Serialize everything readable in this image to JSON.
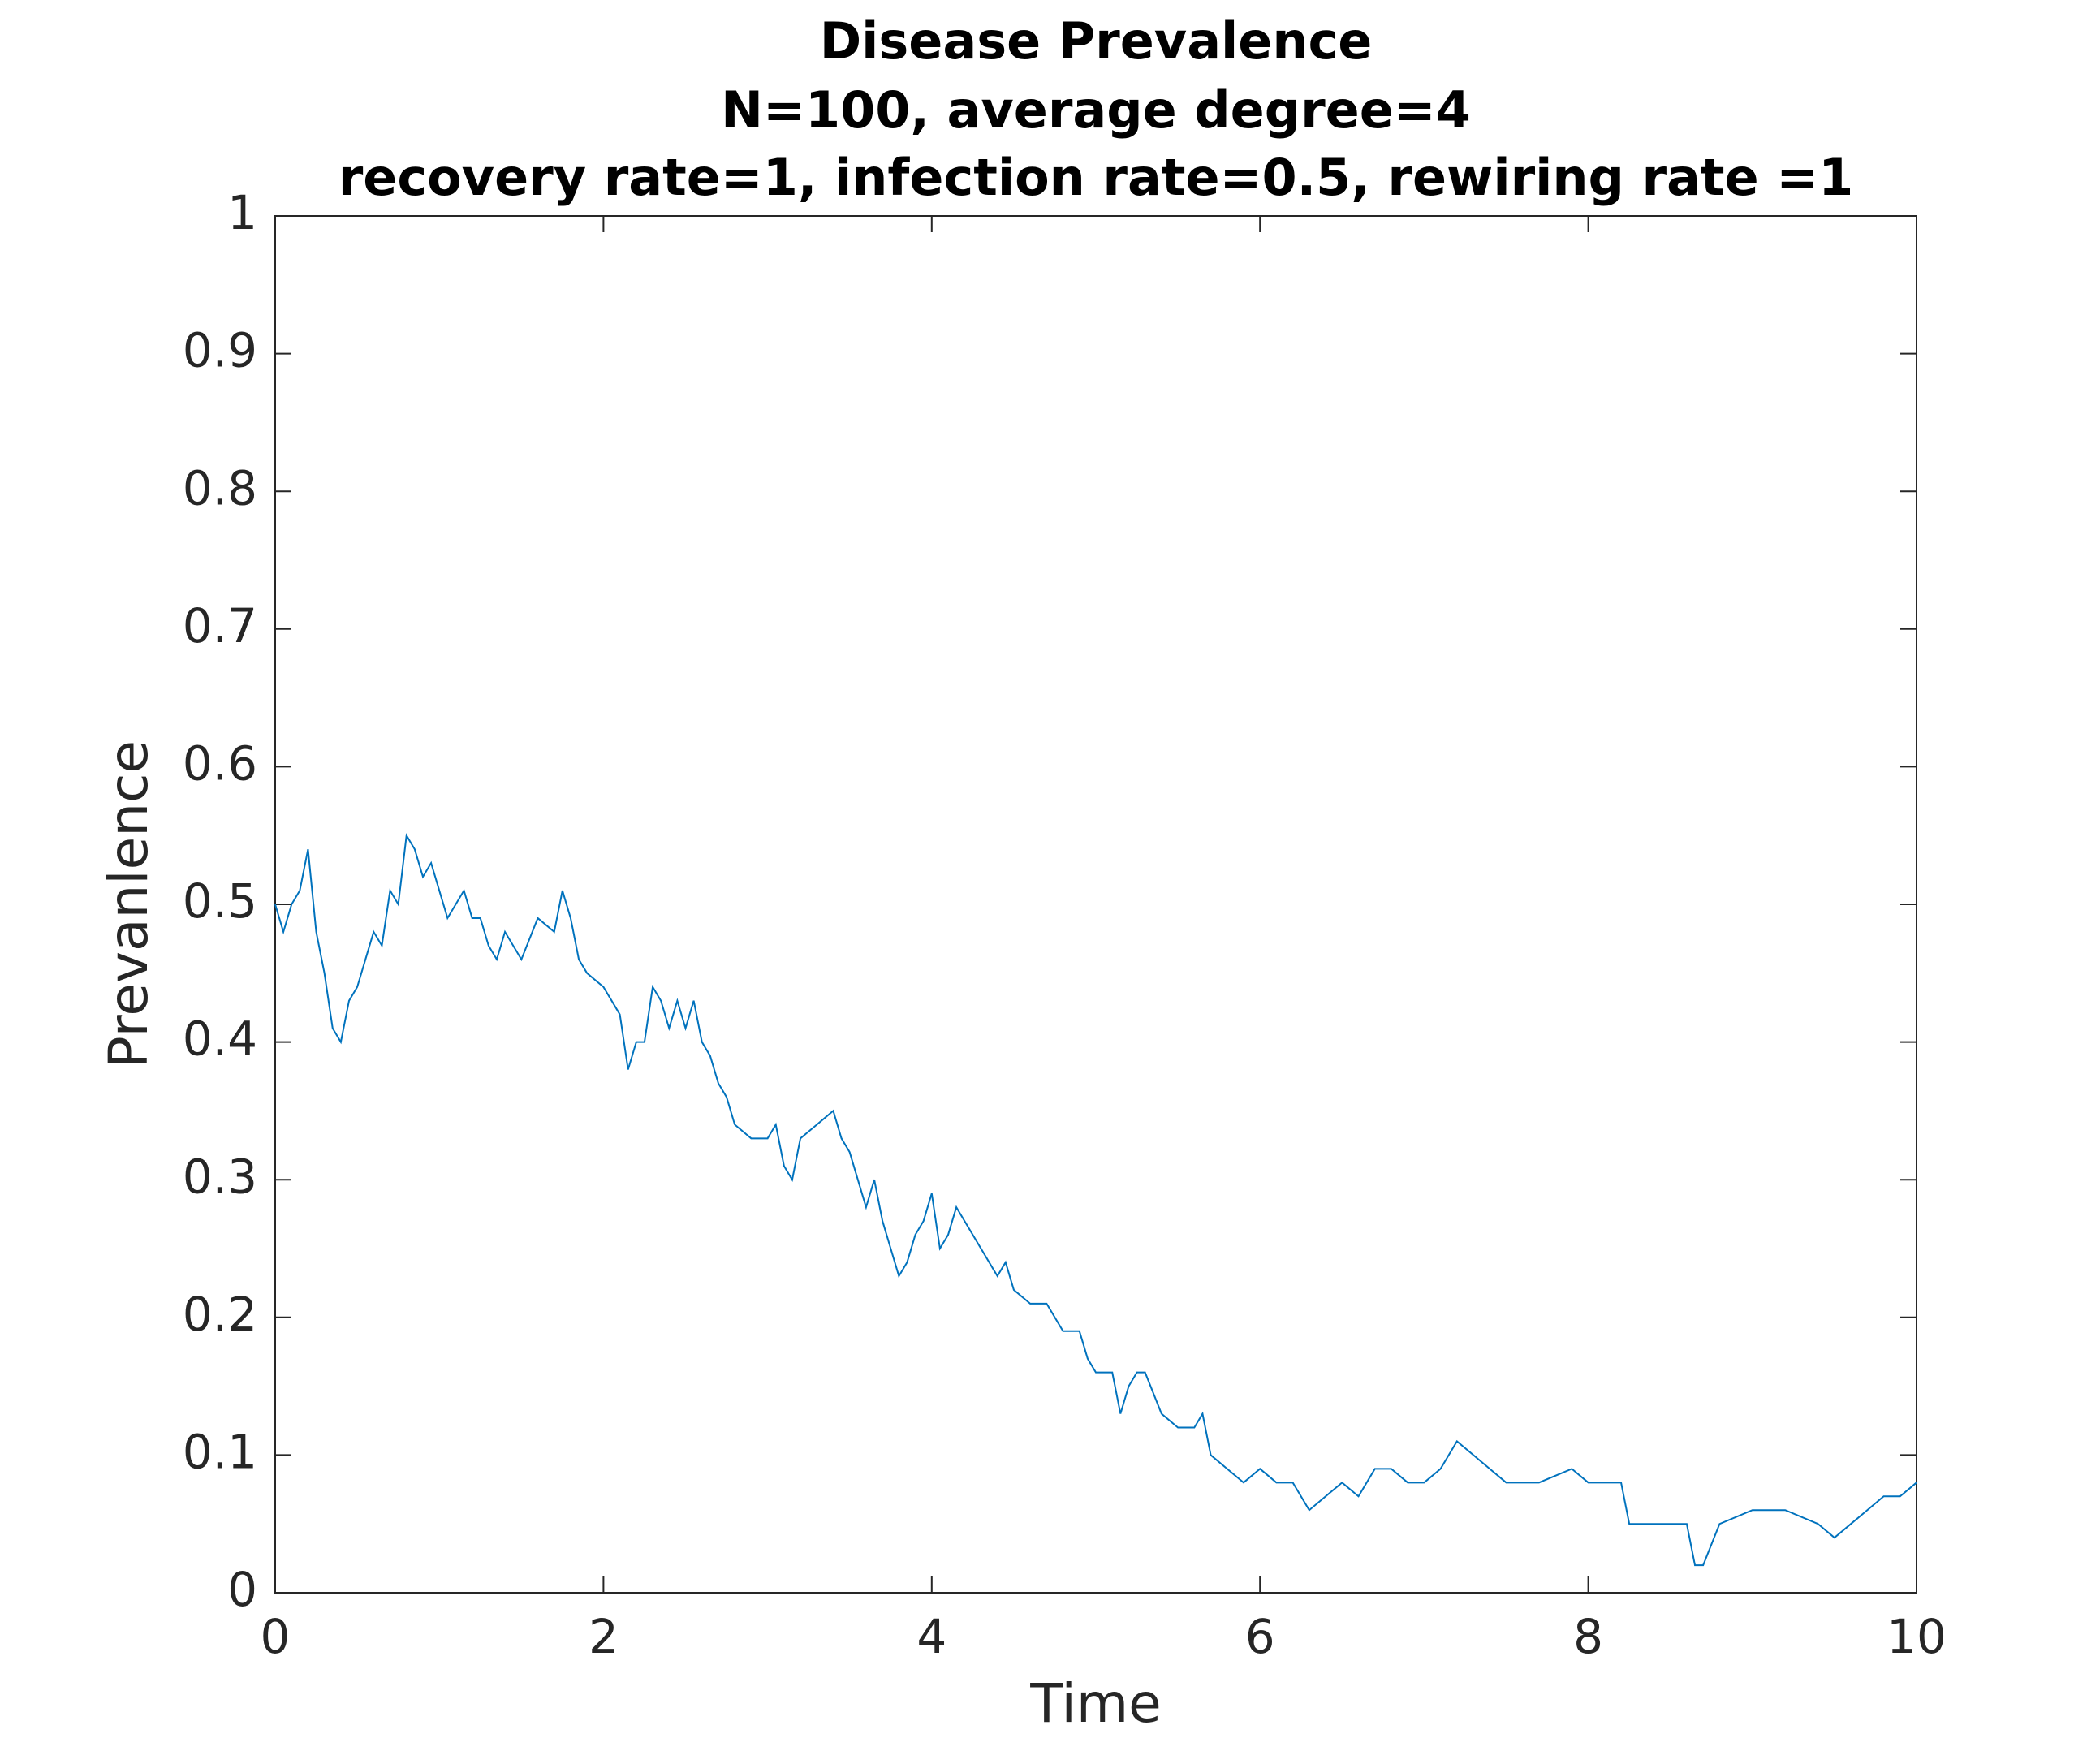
{
  "chart_data": {
    "type": "line",
    "title": [
      "Disease Prevalence",
      "N=100, average degree=4",
      "recovery rate=1, infection rate=0.5, rewiring rate =1"
    ],
    "xlabel": "Time",
    "ylabel": "Prevanlence",
    "color": "#0072bd",
    "x": [
      0,
      0.05,
      0.1,
      0.15,
      0.2,
      0.25,
      0.3,
      0.35,
      0.4,
      0.45,
      0.5,
      0.55,
      0.6,
      0.65,
      0.7,
      0.75,
      0.8,
      0.85,
      0.9,
      0.95,
      1.0,
      1.05,
      1.1,
      1.15,
      1.2,
      1.25,
      1.3,
      1.35,
      1.4,
      1.5,
      1.6,
      1.7,
      1.75,
      1.8,
      1.85,
      1.9,
      2.0,
      2.1,
      2.15,
      2.2,
      2.25,
      2.3,
      2.35,
      2.4,
      2.45,
      2.5,
      2.55,
      2.6,
      2.65,
      2.7,
      2.75,
      2.8,
      2.9,
      3.0,
      3.05,
      3.1,
      3.15,
      3.2,
      3.3,
      3.4,
      3.45,
      3.5,
      3.55,
      3.6,
      3.65,
      3.7,
      3.75,
      3.8,
      3.85,
      3.9,
      3.95,
      4.0,
      4.05,
      4.1,
      4.15,
      4.2,
      4.3,
      4.4,
      4.45,
      4.5,
      4.6,
      4.7,
      4.8,
      4.9,
      4.95,
      5.0,
      5.1,
      5.15,
      5.2,
      5.25,
      5.3,
      5.4,
      5.5,
      5.6,
      5.65,
      5.7,
      5.8,
      5.9,
      6.0,
      6.1,
      6.2,
      6.3,
      6.4,
      6.5,
      6.6,
      6.7,
      6.8,
      6.9,
      7.0,
      7.1,
      7.2,
      7.3,
      7.4,
      7.5,
      7.7,
      7.9,
      8.0,
      8.2,
      8.25,
      8.5,
      8.6,
      8.65,
      8.7,
      8.8,
      9.0,
      9.2,
      9.4,
      9.5,
      9.6,
      9.7,
      9.8,
      9.9,
      10.0
    ],
    "values": [
      0.5,
      0.48,
      0.5,
      0.51,
      0.54,
      0.48,
      0.45,
      0.41,
      0.4,
      0.43,
      0.44,
      0.46,
      0.48,
      0.47,
      0.51,
      0.5,
      0.55,
      0.54,
      0.52,
      0.53,
      0.51,
      0.49,
      0.5,
      0.51,
      0.49,
      0.49,
      0.47,
      0.46,
      0.48,
      0.46,
      0.49,
      0.48,
      0.51,
      0.49,
      0.46,
      0.45,
      0.44,
      0.42,
      0.38,
      0.4,
      0.4,
      0.44,
      0.43,
      0.41,
      0.43,
      0.41,
      0.43,
      0.4,
      0.39,
      0.37,
      0.36,
      0.34,
      0.33,
      0.33,
      0.34,
      0.31,
      0.3,
      0.33,
      0.34,
      0.35,
      0.33,
      0.32,
      0.3,
      0.28,
      0.3,
      0.27,
      0.25,
      0.23,
      0.24,
      0.26,
      0.27,
      0.29,
      0.25,
      0.26,
      0.28,
      0.27,
      0.25,
      0.23,
      0.24,
      0.22,
      0.21,
      0.21,
      0.19,
      0.19,
      0.17,
      0.16,
      0.16,
      0.13,
      0.15,
      0.16,
      0.16,
      0.13,
      0.12,
      0.12,
      0.13,
      0.1,
      0.09,
      0.08,
      0.09,
      0.08,
      0.08,
      0.06,
      0.07,
      0.08,
      0.07,
      0.09,
      0.09,
      0.08,
      0.08,
      0.09,
      0.11,
      0.1,
      0.09,
      0.08,
      0.08,
      0.09,
      0.08,
      0.08,
      0.05,
      0.05,
      0.05,
      0.02,
      0.02,
      0.05,
      0.06,
      0.06,
      0.05,
      0.04,
      0.05,
      0.06,
      0.07,
      0.07,
      0.08
    ],
    "xlim": [
      0,
      10
    ],
    "xticks": [
      0,
      2,
      4,
      6,
      8,
      10
    ],
    "ylim": [
      0,
      1
    ],
    "yticks": [
      0,
      0.1,
      0.2,
      0.3,
      0.4,
      0.5,
      0.6,
      0.7,
      0.8,
      0.9,
      1
    ],
    "grid": false
  }
}
